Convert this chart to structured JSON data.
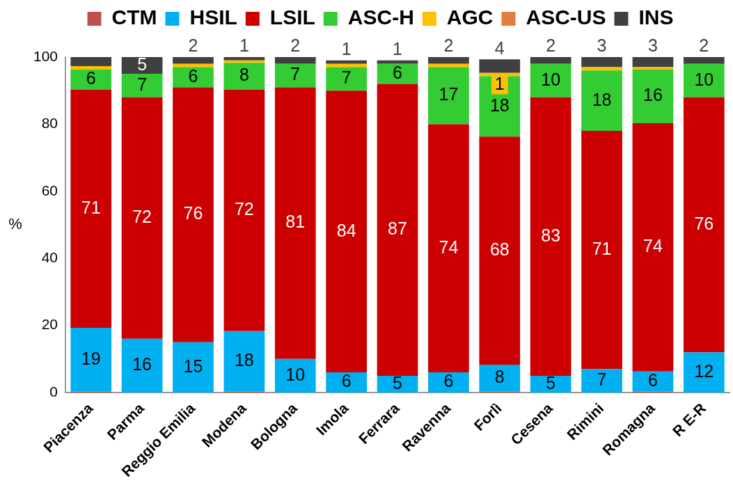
{
  "chart_data": {
    "type": "bar",
    "stacked": true,
    "ylabel": "%",
    "legend": "top",
    "grid": false,
    "categories": [
      "Piacenza",
      "Parma",
      "Reggio Emilia",
      "Modena",
      "Bologna",
      "Imola",
      "Ferrara",
      "Ravenna",
      "Forlì",
      "Cesena",
      "Rimini",
      "Romagna",
      "R E-R"
    ],
    "ylim": [
      0,
      100
    ],
    "yticks": [
      0,
      20,
      40,
      60,
      80,
      100
    ],
    "series": [
      {
        "name": "CTM",
        "color": "#c0504d",
        "values": [
          0.3,
          0,
          0,
          0.3,
          0,
          0,
          0,
          0,
          0.3,
          0,
          0,
          0.3,
          0
        ],
        "value_labels": [
          null,
          null,
          null,
          null,
          null,
          null,
          null,
          null,
          null,
          null,
          null,
          null,
          null
        ]
      },
      {
        "name": "HSIL",
        "color": "#00b0f0",
        "values": [
          19,
          16,
          15,
          18,
          10,
          6,
          5,
          6,
          8,
          5,
          7,
          6,
          12
        ],
        "value_labels": [
          "19",
          "16",
          "15",
          "18",
          "10",
          "6",
          "5",
          "6",
          "8",
          "5",
          "7",
          "6",
          "12"
        ]
      },
      {
        "name": "LSIL",
        "color": "#cc0000",
        "values": [
          71,
          72,
          76,
          72,
          81,
          84,
          87,
          74,
          68,
          83,
          71,
          74,
          76
        ],
        "value_labels": [
          "71",
          "72",
          "76",
          "72",
          "81",
          "84",
          "87",
          "74",
          "68",
          "83",
          "71",
          "74",
          "76"
        ]
      },
      {
        "name": "ASC-H",
        "color": "#33cc33",
        "values": [
          6,
          7,
          6,
          8,
          7,
          7,
          6,
          17,
          18,
          10,
          18,
          16,
          10
        ],
        "value_labels": [
          "6",
          "7",
          "6",
          "8",
          "7",
          "7",
          "6",
          "17",
          "18",
          "10",
          "18",
          "16",
          "10"
        ]
      },
      {
        "name": "AGC",
        "color": "#ffc000",
        "values": [
          1,
          0,
          1,
          0.7,
          null,
          1,
          0,
          1,
          1,
          null,
          1,
          0.7,
          null
        ],
        "value_labels": [
          null,
          null,
          null,
          null,
          null,
          null,
          null,
          null,
          "1",
          null,
          null,
          null,
          null
        ]
      },
      {
        "name": "ASC-US",
        "color": "#e0803a",
        "values": [
          0,
          0,
          0,
          0,
          0,
          0,
          0,
          0,
          0,
          0,
          0,
          0,
          0
        ],
        "value_labels": [
          null,
          null,
          null,
          null,
          null,
          null,
          null,
          null,
          null,
          null,
          null,
          null,
          null
        ]
      },
      {
        "name": "INS",
        "color": "#404040",
        "values": [
          2.7,
          5,
          2,
          1,
          2,
          1,
          1,
          2,
          4,
          2,
          3,
          3,
          2
        ],
        "value_labels": [
          null,
          "5",
          "2",
          "1",
          "2",
          "1",
          "1",
          "2",
          "4",
          "2",
          "3",
          "3",
          "2"
        ]
      }
    ]
  }
}
